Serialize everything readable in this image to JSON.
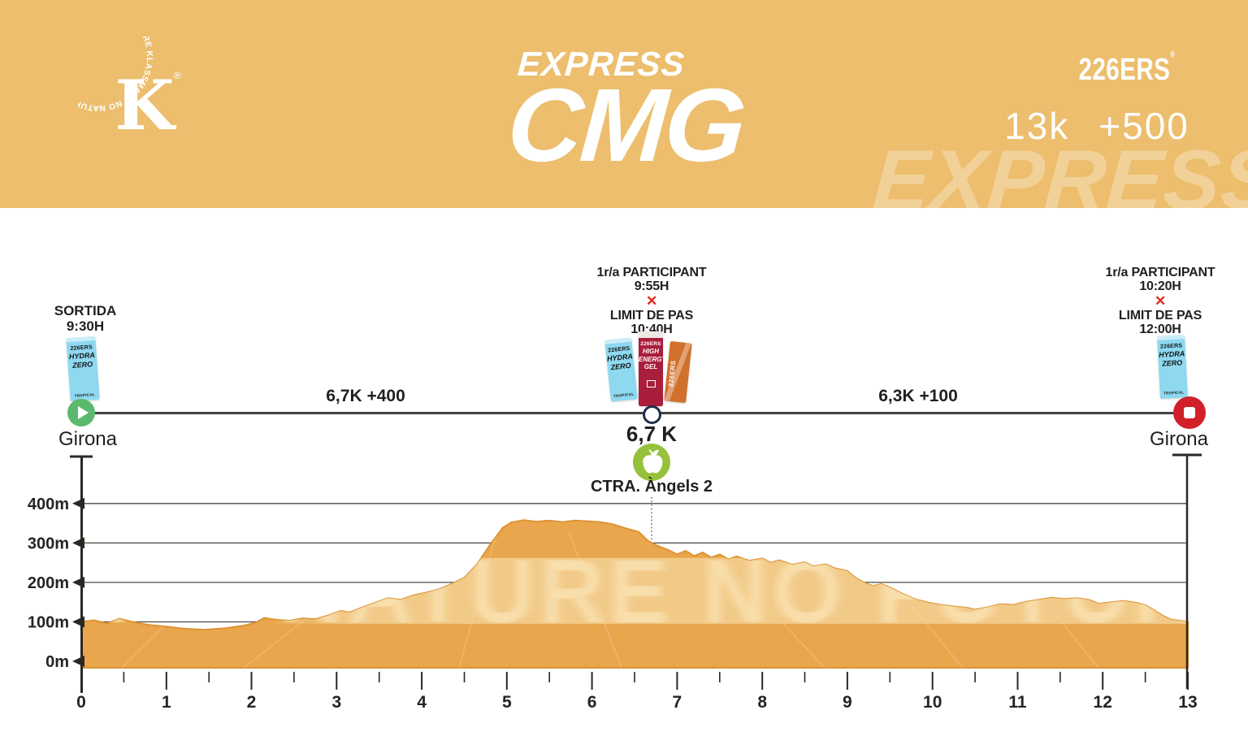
{
  "header": {
    "bg_color": "#ecbe6d",
    "logo": {
      "ring_text": "KLASSMARK  NO NATURE NO FUTURE  KLASSMARK  NO NATURE NO FUTURE",
      "monogram": "K",
      "registered_mark": "®"
    },
    "race_series": "EXPRESS",
    "race_name": "CMG",
    "sponsor_logo": "226ERS",
    "sponsor_registered_mark": "®",
    "distance": "13k",
    "elevation_gain": "+500",
    "watermark": "EXPRESS"
  },
  "course": {
    "segments": [
      {
        "label": "6,7K +400"
      },
      {
        "label": "6,3K +100"
      }
    ],
    "start": {
      "title": "SORTIDA",
      "time": "9:30H",
      "place": "Girona",
      "product": {
        "brand": "226ERS",
        "name_lines": [
          "HYDRA",
          "ZERO"
        ],
        "flavor": "TROPICAL",
        "color": "#8ed8f0"
      }
    },
    "mid": {
      "participant_label": "1r/a PARTICIPANT",
      "participant_time": "9:55H",
      "cutoff_mark": "✕",
      "limit_label": "LIMIT DE PAS",
      "limit_time": "10:40H",
      "km_label": "6,7 K",
      "place": "CTRA. Àngels 2",
      "products": [
        {
          "brand": "226ERS",
          "name_lines": [
            "HYDRA",
            "ZERO"
          ],
          "flavor": "TROPICAL",
          "color": "#8ed8f0"
        },
        {
          "brand": "226ERS",
          "name_lines": [
            "HIGH",
            "ENERGY",
            "GEL"
          ],
          "color": "#a91e3c"
        },
        {
          "brand": "226ERS",
          "name_lines": [],
          "color": "#d1712b"
        }
      ]
    },
    "finish": {
      "participant_label": "1r/a PARTICIPANT",
      "participant_time": "10:20H",
      "cutoff_mark": "✕",
      "limit_label": "LIMIT DE PAS",
      "limit_time": "12:00H",
      "place": "Girona",
      "product": {
        "brand": "226ERS",
        "name_lines": [
          "HYDRA",
          "ZERO"
        ],
        "flavor": "TROPICAL",
        "color": "#8ed8f0"
      }
    }
  },
  "chart_data": {
    "type": "area",
    "title": "",
    "x_unit": "km",
    "y_unit": "m",
    "xlim": [
      0,
      13
    ],
    "ylim": [
      0,
      450
    ],
    "grid": true,
    "x_tick_labels": [
      "0",
      "1",
      "2",
      "3",
      "4",
      "5",
      "6",
      "7",
      "8",
      "9",
      "10",
      "11",
      "12",
      "13"
    ],
    "y_ticks": [
      {
        "value": 400,
        "label": "400m"
      },
      {
        "value": 300,
        "label": "300m"
      },
      {
        "value": 200,
        "label": "200m"
      },
      {
        "value": 100,
        "label": "100m"
      },
      {
        "value": 0,
        "label": "0m"
      }
    ],
    "checkpoint_km": 6.7,
    "watermark": "NO NATURE NO FUTURE",
    "fill_color": "#e9a64c",
    "edge_color": "#dc9434",
    "band_color": "#f6d9a2",
    "profile": [
      [
        0,
        100
      ],
      [
        0.15,
        104
      ],
      [
        0.3,
        96
      ],
      [
        0.45,
        108
      ],
      [
        0.6,
        100
      ],
      [
        0.8,
        92
      ],
      [
        1,
        88
      ],
      [
        1.2,
        83
      ],
      [
        1.45,
        80
      ],
      [
        1.7,
        84
      ],
      [
        1.9,
        90
      ],
      [
        2.05,
        98
      ],
      [
        2.15,
        110
      ],
      [
        2.3,
        105
      ],
      [
        2.45,
        103
      ],
      [
        2.6,
        109
      ],
      [
        2.75,
        107
      ],
      [
        2.9,
        116
      ],
      [
        3.05,
        128
      ],
      [
        3.15,
        124
      ],
      [
        3.3,
        136
      ],
      [
        3.45,
        148
      ],
      [
        3.6,
        160
      ],
      [
        3.75,
        156
      ],
      [
        3.9,
        167
      ],
      [
        4.05,
        174
      ],
      [
        4.2,
        182
      ],
      [
        4.35,
        196
      ],
      [
        4.5,
        212
      ],
      [
        4.65,
        246
      ],
      [
        4.8,
        295
      ],
      [
        4.95,
        338
      ],
      [
        5.05,
        352
      ],
      [
        5.2,
        358
      ],
      [
        5.35,
        354
      ],
      [
        5.5,
        357
      ],
      [
        5.65,
        353
      ],
      [
        5.8,
        357
      ],
      [
        5.95,
        355
      ],
      [
        6.1,
        353
      ],
      [
        6.25,
        347
      ],
      [
        6.4,
        337
      ],
      [
        6.55,
        328
      ],
      [
        6.65,
        307
      ],
      [
        6.7,
        300
      ],
      [
        6.8,
        290
      ],
      [
        6.9,
        282
      ],
      [
        7,
        271
      ],
      [
        7.1,
        280
      ],
      [
        7.2,
        267
      ],
      [
        7.3,
        276
      ],
      [
        7.4,
        263
      ],
      [
        7.5,
        271
      ],
      [
        7.6,
        259
      ],
      [
        7.7,
        266
      ],
      [
        7.85,
        255
      ],
      [
        8,
        261
      ],
      [
        8.1,
        250
      ],
      [
        8.2,
        256
      ],
      [
        8.35,
        245
      ],
      [
        8.5,
        251
      ],
      [
        8.6,
        241
      ],
      [
        8.75,
        246
      ],
      [
        8.85,
        236
      ],
      [
        9,
        229
      ],
      [
        9.1,
        211
      ],
      [
        9.2,
        199
      ],
      [
        9.3,
        191
      ],
      [
        9.4,
        196
      ],
      [
        9.5,
        187
      ],
      [
        9.65,
        171
      ],
      [
        9.8,
        157
      ],
      [
        9.95,
        149
      ],
      [
        10.1,
        143
      ],
      [
        10.25,
        139
      ],
      [
        10.4,
        136
      ],
      [
        10.5,
        131
      ],
      [
        10.65,
        137
      ],
      [
        10.8,
        145
      ],
      [
        10.95,
        143
      ],
      [
        11.1,
        151
      ],
      [
        11.25,
        156
      ],
      [
        11.4,
        161
      ],
      [
        11.55,
        158
      ],
      [
        11.7,
        160
      ],
      [
        11.85,
        155
      ],
      [
        11.95,
        146
      ],
      [
        12.1,
        150
      ],
      [
        12.25,
        153
      ],
      [
        12.4,
        148
      ],
      [
        12.5,
        142
      ],
      [
        12.6,
        130
      ],
      [
        12.7,
        116
      ],
      [
        12.8,
        106
      ],
      [
        12.9,
        103
      ],
      [
        13,
        100
      ]
    ]
  }
}
